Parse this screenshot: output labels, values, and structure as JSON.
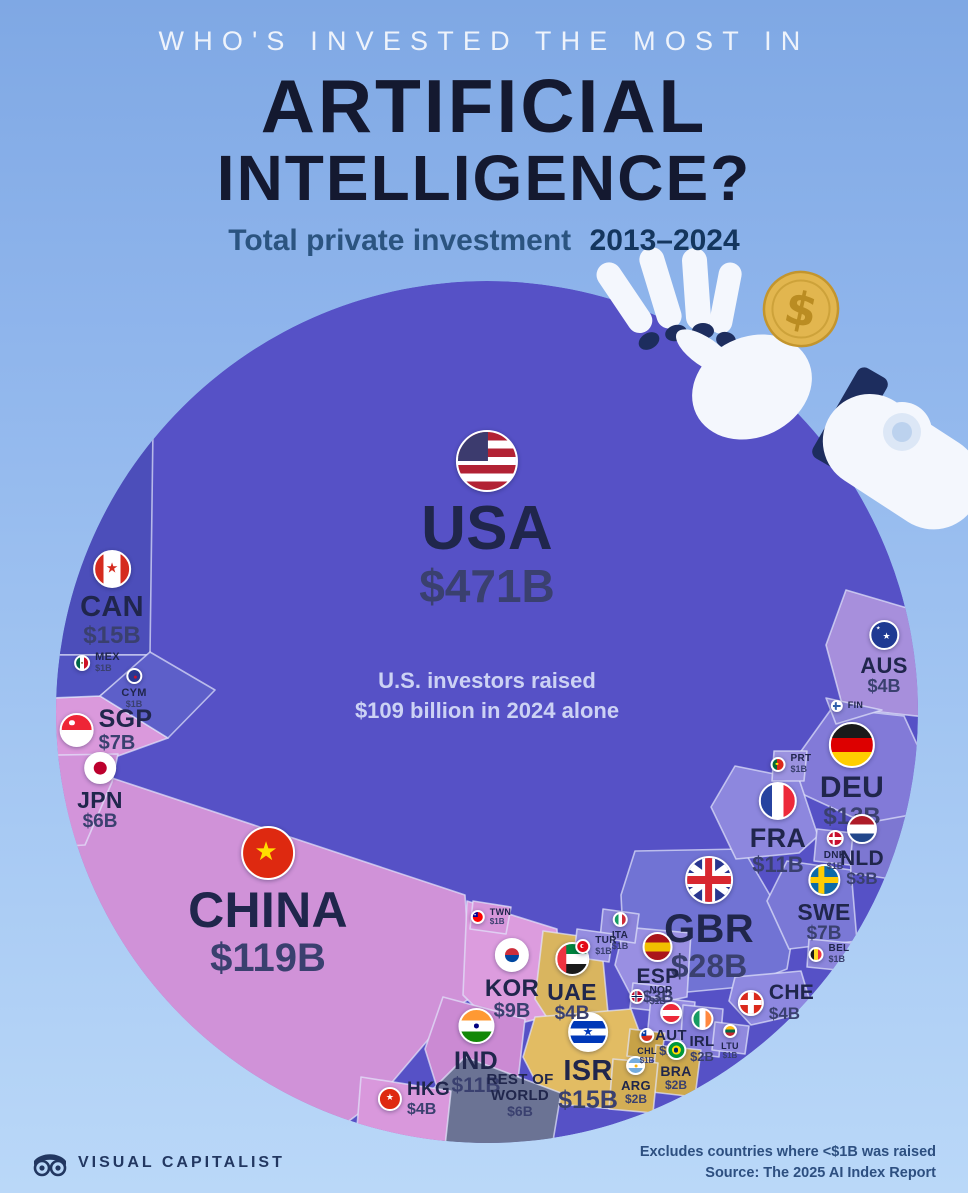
{
  "title": {
    "kicker": "WHO'S INVESTED THE MOST IN",
    "line1": "ARTIFICIAL",
    "line2": "INTELLIGENCE?"
  },
  "subtitle": {
    "text": "Total private investment",
    "years": "2013–2024"
  },
  "annotation": {
    "line1": "U.S. investors raised",
    "line2": "$109 billion in 2024 alone"
  },
  "footer": {
    "brand": "VISUAL CAPITALIST",
    "note_line1": "Excludes countries where <$1B was raised",
    "note_line2": "Source: The 2025 AI Index Report"
  },
  "colors": {
    "background_top": "#7fa8e4",
    "background_bottom": "#bad8f8",
    "title_dark": "#141930",
    "kicker_light": "#eef3fb",
    "label_text": "#20264c",
    "value_text": "#3a406f",
    "annotation_text": "#ccd2f4",
    "cell_border": "#e2e6fb",
    "robot_white": "#f4f7fd",
    "robot_navy": "#1d2d5e",
    "coin_gold": "#e2b64f"
  },
  "chart_data": {
    "type": "voronoi_treemap",
    "title": "Who's invested the most in Artificial Intelligence?",
    "subtitle": "Total private investment 2013–2024",
    "unit": "USD billions",
    "items": {
      "usa": {
        "label": "USA",
        "value_text": "$471B",
        "value_b": 471,
        "group": "north-america",
        "color": "#5651c6"
      },
      "chn": {
        "label": "CHINA",
        "value_text": "$119B",
        "value_b": 119,
        "group": "asia",
        "color": "#d092d8"
      },
      "gbr": {
        "label": "GBR",
        "value_text": "$28B",
        "value_b": 28,
        "group": "europe",
        "color": "#7173d4"
      },
      "isr": {
        "label": "ISR",
        "value_text": "$15B",
        "value_b": 15,
        "group": "middle-east",
        "color": "#e2bc63"
      },
      "can": {
        "label": "CAN",
        "value_text": "$15B",
        "value_b": 15,
        "group": "north-america",
        "color": "#4c4eba"
      },
      "deu": {
        "label": "DEU",
        "value_text": "$13B",
        "value_b": 13,
        "group": "europe",
        "color": "#827ad8"
      },
      "ind": {
        "label": "IND",
        "value_text": "$11B",
        "value_b": 11,
        "group": "asia",
        "color": "#cb8ad3"
      },
      "fra": {
        "label": "FRA",
        "value_text": "$11B",
        "value_b": 11,
        "group": "europe",
        "color": "#8d87de"
      },
      "kor": {
        "label": "KOR",
        "value_text": "$9B",
        "value_b": 9,
        "group": "asia",
        "color": "#dc9cde"
      },
      "sgp": {
        "label": "SGP",
        "value_text": "$7B",
        "value_b": 7,
        "group": "asia",
        "color": "#da99dc"
      },
      "swe": {
        "label": "SWE",
        "value_text": "$7B",
        "value_b": 7,
        "group": "europe",
        "color": "#7a78d6"
      },
      "jpn": {
        "label": "JPN",
        "value_text": "$6B",
        "value_b": 6,
        "group": "asia",
        "color": "#d394da"
      },
      "row": {
        "label": "REST OF\nWORLD",
        "value_text": "$6B",
        "value_b": 6,
        "group": "other",
        "color": "#6b7394"
      },
      "aus": {
        "label": "AUS",
        "value_text": "$4B",
        "value_b": 4,
        "group": "oceania",
        "color": "#a78fdc"
      },
      "che": {
        "label": "CHE",
        "value_text": "$4B",
        "value_b": 4,
        "group": "europe",
        "color": "#8e88e0"
      },
      "hkg": {
        "label": "HKG",
        "value_text": "$4B",
        "value_b": 4,
        "group": "asia",
        "color": "#d998dc"
      },
      "uae": {
        "label": "UAE",
        "value_text": "$4B",
        "value_b": 4,
        "group": "middle-east",
        "color": "#d9b55f"
      },
      "esp": {
        "label": "ESP",
        "value_text": "$3B",
        "value_b": 3,
        "group": "europe",
        "color": "#998fe2"
      },
      "nld": {
        "label": "NLD",
        "value_text": "$3B",
        "value_b": 3,
        "group": "europe",
        "color": "#7d77d2"
      },
      "aut": {
        "label": "AUT",
        "value_text": "$2B",
        "value_b": 2,
        "group": "europe",
        "color": "#968ce2"
      },
      "irl": {
        "label": "IRL",
        "value_text": "$2B",
        "value_b": 2,
        "group": "europe",
        "color": "#827bd8"
      },
      "bra": {
        "label": "BRA",
        "value_text": "$2B",
        "value_b": 2,
        "group": "latin-america",
        "color": "#cda84d"
      },
      "arg": {
        "label": "ARG",
        "value_text": "$2B",
        "value_b": 2,
        "group": "latin-america",
        "color": "#d3ae55"
      },
      "mex": {
        "label": "MEX",
        "value_text": "$1B",
        "value_b": 1,
        "group": "north-america",
        "color": "#5254c2"
      },
      "cym": {
        "label": "CYM",
        "value_text": "$1B",
        "value_b": 1,
        "group": "north-america",
        "color": "#5d5fc9"
      },
      "prt": {
        "label": "PRT",
        "value_text": "$1B",
        "value_b": 1,
        "group": "europe",
        "color": "#9b92e0"
      },
      "dnk": {
        "label": "DNK",
        "value_text": "$1B",
        "value_b": 1,
        "group": "europe",
        "color": "#8a84da"
      },
      "bel": {
        "label": "BEL",
        "value_text": "$1B",
        "value_b": 1,
        "group": "europe",
        "color": "#8c86dc"
      },
      "ita": {
        "label": "ITA",
        "value_text": "$1B",
        "value_b": 1,
        "group": "europe",
        "color": "#8b84da"
      },
      "tur": {
        "label": "TUR",
        "value_text": "$1B",
        "value_b": 1,
        "group": "europe",
        "color": "#958de0"
      },
      "nor": {
        "label": "NOR",
        "value_text": "$1B",
        "value_b": 1,
        "group": "europe",
        "color": "#8e86dc"
      },
      "ltu": {
        "label": "LTU",
        "value_text": "$1B",
        "value_b": 1,
        "group": "europe",
        "color": "#9089de"
      },
      "chl": {
        "label": "CHL",
        "value_text": "$1B",
        "value_b": 1,
        "group": "latin-america",
        "color": "#c7a247"
      },
      "twn": {
        "label": "TWN",
        "value_text": "$1B",
        "value_b": 1,
        "group": "asia",
        "color": "#d696da"
      },
      "fin": {
        "label": "FIN",
        "value_text": "",
        "value_b": null,
        "group": "europe",
        "color": "#8a82d8"
      }
    }
  },
  "flags": {
    "usa": {
      "d": "h",
      "s": [
        "#b22234",
        "#ffffff",
        "#b22234",
        "#ffffff",
        "#b22234",
        "#ffffff",
        "#b22234"
      ],
      "g": [
        [
          "canton",
          "#3c3b6e",
          52,
          50
        ]
      ]
    },
    "chn": {
      "s": [
        "#de2910"
      ],
      "g": [
        [
          "star",
          "#ffde00",
          52,
          46,
          50
        ]
      ]
    },
    "gbr": {
      "s": [
        "#29368f"
      ],
      "g": [
        [
          "saltire",
          "#ffffff",
          16
        ],
        [
          "cross",
          "#ffffff",
          30
        ],
        [
          "cross",
          "#d8272f",
          16
        ]
      ]
    },
    "can": {
      "d": "v",
      "s": [
        "#d52b1e",
        "#ffffff",
        "#ffffff",
        "#d52b1e"
      ],
      "g": [
        [
          "star",
          "#d52b1e",
          42,
          50,
          50
        ]
      ]
    },
    "isr": {
      "d": "h",
      "s": [
        "#ffffff",
        "#0038b8",
        "#ffffff",
        "#0038b8",
        "#ffffff"
      ],
      "g": [
        [
          "star",
          "#0038b8",
          34,
          50,
          50
        ]
      ]
    },
    "deu": {
      "d": "h",
      "s": [
        "#1a1a1a",
        "#dd0000",
        "#ffce00"
      ]
    },
    "ind": {
      "d": "h",
      "s": [
        "#ff9933",
        "#ffffff",
        "#138808"
      ],
      "g": [
        [
          "dot",
          "#000080",
          16,
          50,
          50
        ]
      ]
    },
    "fra": {
      "d": "v",
      "s": [
        "#2743a0",
        "#ffffff",
        "#ed2939"
      ]
    },
    "kor": {
      "s": [
        "#ffffff"
      ],
      "g": [
        [
          "dot",
          "lg:#cd2e3a|#0047a0",
          46,
          50,
          50
        ]
      ]
    },
    "sgp": {
      "d": "h",
      "s": [
        "#ee2536",
        "#ffffff"
      ],
      "g": [
        [
          "dot",
          "#ffffff",
          18,
          34,
          26
        ]
      ]
    },
    "swe": {
      "s": [
        "#0c6aa8"
      ],
      "g": [
        [
          "nordic",
          "#fecc02",
          20
        ]
      ]
    },
    "jpn": {
      "s": [
        "#ffffff"
      ],
      "g": [
        [
          "dot",
          "#bc002d",
          46,
          50,
          50
        ]
      ]
    },
    "aus": {
      "s": [
        "#1f3a93"
      ],
      "g": [
        [
          "star",
          "#ffffff",
          34,
          60,
          62
        ],
        [
          "star",
          "#ffffff",
          20,
          28,
          28
        ]
      ]
    },
    "che": {
      "s": [
        "#da291c"
      ],
      "g": [
        [
          "cross",
          "#ffffff",
          24
        ]
      ]
    },
    "hkg": {
      "s": [
        "#de2910"
      ],
      "g": [
        [
          "star",
          "#ffffff",
          44,
          50,
          52
        ]
      ]
    },
    "uae": {
      "d": "h",
      "s": [
        "#00843d",
        "#ffffff",
        "#1a1a1a"
      ],
      "g": [
        [
          "vbar",
          "#ef3340",
          30
        ]
      ]
    },
    "esp": {
      "d": "h",
      "s": [
        "#aa151b",
        "#f1bf00",
        "#aa151b"
      ]
    },
    "nld": {
      "d": "h",
      "s": [
        "#ae1c28",
        "#ffffff",
        "#21468b"
      ]
    },
    "aut": {
      "d": "h",
      "s": [
        "#ed2939",
        "#ffffff",
        "#ed2939"
      ]
    },
    "irl": {
      "d": "v",
      "s": [
        "#169b62",
        "#ffffff",
        "#ff883e"
      ]
    },
    "bra": {
      "s": [
        "#009739"
      ],
      "g": [
        [
          "dot",
          "#fedd00",
          56,
          50,
          50
        ],
        [
          "dot",
          "#012169",
          30,
          50,
          50
        ]
      ]
    },
    "arg": {
      "d": "h",
      "s": [
        "#74acdf",
        "#ffffff",
        "#74acdf"
      ],
      "g": [
        [
          "dot",
          "#f6b40e",
          20,
          50,
          50
        ]
      ]
    },
    "mex": {
      "d": "v",
      "s": [
        "#006847",
        "#ffffff",
        "#ce1126"
      ],
      "g": [
        [
          "dot",
          "#8a6d3b",
          18,
          50,
          50
        ]
      ]
    },
    "cym": {
      "s": [
        "#29368f"
      ],
      "g": [
        [
          "dot",
          "#c8102e",
          24,
          64,
          56
        ]
      ]
    },
    "prt": {
      "d": "v",
      "s": [
        "#046a38",
        "#046a38",
        "#da291c",
        "#da291c",
        "#da291c"
      ],
      "g": [
        [
          "dot",
          "#ffe900",
          20,
          40,
          50
        ]
      ]
    },
    "dnk": {
      "s": [
        "#c8102e"
      ],
      "g": [
        [
          "nordic",
          "#ffffff",
          20
        ]
      ]
    },
    "bel": {
      "d": "v",
      "s": [
        "#1a1a1a",
        "#fdda24",
        "#ef3340"
      ]
    },
    "ita": {
      "d": "v",
      "s": [
        "#169b62",
        "#ffffff",
        "#ce2b37"
      ]
    },
    "tur": {
      "s": [
        "#e30a17"
      ],
      "g": [
        [
          "dot",
          "#ffffff",
          36,
          44,
          50
        ],
        [
          "dot",
          "#e30a17",
          28,
          54,
          50
        ]
      ]
    },
    "nor": {
      "s": [
        "#ba0c2f"
      ],
      "g": [
        [
          "nordic",
          "#ffffff",
          26
        ],
        [
          "nordic",
          "#00205b",
          12
        ]
      ]
    },
    "ltu": {
      "d": "h",
      "s": [
        "#fdb913",
        "#006a44",
        "#c1272d"
      ]
    },
    "chl": {
      "d": "h",
      "s": [
        "#ffffff",
        "#d52b1e"
      ],
      "g": [
        [
          "canton",
          "#0039a6",
          46,
          50
        ],
        [
          "star",
          "#ffffff",
          16,
          22,
          26
        ]
      ]
    },
    "twn": {
      "s": [
        "#fe0000"
      ],
      "g": [
        [
          "canton",
          "#000095",
          52,
          50
        ],
        [
          "dot",
          "#ffffff",
          14,
          24,
          24
        ]
      ]
    },
    "fin": {
      "s": [
        "#ffffff"
      ],
      "g": [
        [
          "nordic",
          "#2f5faa",
          24
        ]
      ]
    }
  }
}
